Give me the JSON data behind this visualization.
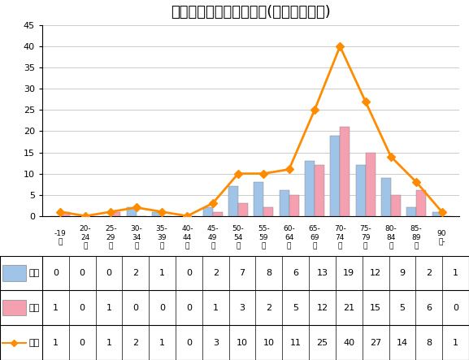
{
  "title": "年齢階級別、性別登録数(悪性リンパ腫)",
  "categories": [
    "-19\n歳",
    "20-\n24\n歳",
    "25-\n29\n歳",
    "30-\n34\n歳",
    "35-\n39\n歳",
    "40-\n44\n歳",
    "45-\n49\n歳",
    "50-\n54\n歳",
    "55-\n59\n歳",
    "60-\n64\n歳",
    "65-\n69\n歳",
    "70-\n74\n歳",
    "75-\n79\n歳",
    "80-\n84\n歳",
    "85-\n89\n歳",
    "90\n歳-"
  ],
  "cat_short": [
    "-19",
    "20-\n24",
    "25-\n29",
    "30-\n34",
    "35-\n39",
    "40-\n44",
    "45-\n49",
    "50-\n54",
    "55-\n59",
    "60-\n64",
    "65-\n69",
    "70-\n74",
    "75-\n79",
    "80-\n84",
    "85-\n89",
    "90\n歳-"
  ],
  "male": [
    0,
    0,
    0,
    2,
    1,
    0,
    2,
    7,
    8,
    6,
    13,
    19,
    12,
    9,
    2,
    1
  ],
  "female": [
    1,
    0,
    1,
    0,
    0,
    0,
    1,
    3,
    2,
    5,
    12,
    21,
    15,
    5,
    6,
    0
  ],
  "total": [
    1,
    0,
    1,
    2,
    1,
    0,
    3,
    10,
    10,
    11,
    25,
    40,
    27,
    14,
    8,
    1
  ],
  "male_color": "#a0c4e8",
  "female_color": "#f4a0b0",
  "total_color": "#ff8c00",
  "total_marker": "D",
  "ylim": [
    0,
    45
  ],
  "yticks": [
    0,
    5,
    10,
    15,
    20,
    25,
    30,
    35,
    40,
    45
  ],
  "title_fontsize": 13,
  "legend_labels": [
    "男性",
    "女性",
    "総計"
  ],
  "table_row_labels": [
    "男性",
    "女性",
    "総計"
  ],
  "bg_color": "#ffffff"
}
